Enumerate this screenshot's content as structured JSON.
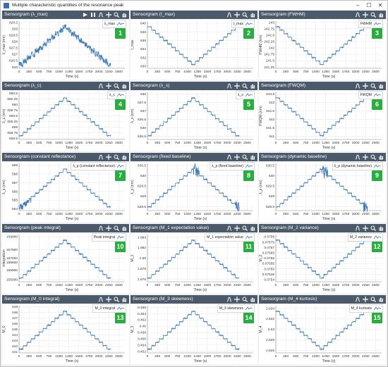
{
  "window": {
    "title": "Multiple characteristic quantities of the resonance peak",
    "controls": [
      "–",
      "☐",
      "✕"
    ]
  },
  "colors": {
    "line": "#3c78b5",
    "header": "#4a5a6b",
    "badge": "#27ae3f"
  },
  "panels": [
    {
      "number": "1",
      "title": "Sensorgram (λ_max)",
      "legend": "λ_max",
      "extra_tools": true,
      "ylabel": "λ_max (nm)",
      "xlabel": "Time (s)",
      "yticks": [
        "629.5",
        "629",
        "628.5",
        "628",
        "627.5",
        "627",
        "626.5",
        "626"
      ],
      "ylim": [
        625.9,
        629.6
      ],
      "pattern": "noisy_up_down"
    },
    {
      "number": "2",
      "title": "Sensorgram (I_max)",
      "legend": "I_max",
      "extra_tools": false,
      "ylabel": "I_max",
      "xlabel": "Time (s)",
      "yticks": [
        "640",
        "638",
        "636",
        "634",
        "632",
        "630"
      ],
      "ylim": [
        629.5,
        640.5
      ],
      "pattern": "dip"
    },
    {
      "number": "3",
      "title": "Sensorgram (FWHM)",
      "legend": "FWHM",
      "extra_tools": false,
      "ylabel": "FWHM (nm)",
      "xlabel": "Time (s)",
      "yticks": [
        "243",
        "242.75",
        "242.5",
        "242.25",
        "242",
        "241.75",
        "241.5",
        "241.25"
      ],
      "ylim": [
        241.2,
        243.05
      ],
      "pattern": "dip"
    },
    {
      "number": "4",
      "title": "Sensorgram (λ_c)",
      "legend": "λ_c",
      "extra_tools": false,
      "ylabel": "λ_c (nm)",
      "xlabel": "Time (s)",
      "yticks": [
        "660.5",
        "660.25",
        "660",
        "659.75",
        "659.5",
        "659.25",
        "659",
        "658.75",
        "658.5"
      ],
      "ylim": [
        658.45,
        660.55
      ],
      "pattern": "peak"
    },
    {
      "number": "5",
      "title": "Sensorgram (λ_s)",
      "legend": "λ_s",
      "extra_tools": false,
      "ylabel": "λ_s (nm)",
      "xlabel": "Time (s)",
      "yticks": [
        "638",
        "637.5",
        "637",
        "636.5",
        "636",
        "635.5"
      ],
      "ylim": [
        635.3,
        638.1
      ],
      "pattern": "peak"
    },
    {
      "number": "6",
      "title": "Sensorgram (FWQM)",
      "legend": "FWQM",
      "extra_tools": false,
      "ylabel": "FWQM (nm)",
      "xlabel": "Time (s)",
      "yticks": [
        "343.5",
        "343",
        "342.5",
        "342",
        "341.5",
        "341"
      ],
      "ylim": [
        340.8,
        343.6
      ],
      "pattern": "dip"
    },
    {
      "number": "7",
      "title": "Sensorgram (constant reflectance)",
      "legend": "λ_p (constant reflectance)",
      "extra_tools": false,
      "ylabel": "λ_p (nm)",
      "xlabel": "Time (s)",
      "yticks": [
        "569",
        "568",
        "567",
        "566",
        "565",
        "564"
      ],
      "ylim": [
        563.8,
        569.2
      ],
      "pattern": "peak_noisy_start"
    },
    {
      "number": "8",
      "title": "Sensorgram (fixed baseline)",
      "legend": "λ_p (fixed baseline)",
      "extra_tools": false,
      "ylabel": "λ_p (nm)",
      "xlabel": "Time (s)",
      "yticks": [
        "630.5",
        "630",
        "629.5",
        "629",
        "628.5"
      ],
      "ylim": [
        628.3,
        630.6
      ],
      "pattern": "peak_bursty"
    },
    {
      "number": "9",
      "title": "Sensorgram (dynamic baseline)",
      "legend": "λ_p (dynamic baseline)",
      "extra_tools": false,
      "ylabel": "λ_p (nm)",
      "xlabel": "Time (s)",
      "yticks": [
        "630.5",
        "630",
        "629.5",
        "629",
        "628.5"
      ],
      "ylim": [
        628.3,
        630.6
      ],
      "pattern": "peak_bursty"
    },
    {
      "number": "10",
      "title": "Sensorgram (peak integral)",
      "legend": "Peak integral",
      "extra_tools": false,
      "ylabel": "Integration",
      "xlabel": "Time (s)",
      "yticks": [
        "159000",
        "157800",
        "157000",
        "156600",
        "155900",
        "155000"
      ],
      "ylim": [
        154800,
        159200
      ],
      "pattern": "peak"
    },
    {
      "number": "11",
      "title": "Sensorgram (M_1 expectation value)",
      "legend": "M_1 expectation value",
      "extra_tools": false,
      "ylabel": "M_1",
      "xlabel": "Time (s)",
      "yticks": [
        "1.884",
        "1.882",
        "1.88",
        "1.878",
        "1.876"
      ],
      "ylim": [
        1.8755,
        1.8845
      ],
      "pattern": "peak"
    },
    {
      "number": "12",
      "title": "Sensorgram (M_2 variance)",
      "legend": "M_2 variance",
      "extra_tools": false,
      "ylabel": "M_2",
      "xlabel": "Time (s)",
      "yticks": [
        "0.0758",
        "0.07575",
        "0.0757",
        "0.07565",
        "0.0756",
        "0.07555",
        "0.0755",
        "0.07545",
        "0.0754"
      ],
      "ylim": [
        0.07538,
        0.07582
      ],
      "pattern": "dip"
    },
    {
      "number": "13",
      "title": "Sensorgram (M_0 integral)",
      "legend": "M_0 integral",
      "extra_tools": false,
      "ylabel": "M_0",
      "xlabel": "Time (s)",
      "yticks": [
        "449",
        "448",
        "447",
        "446",
        "445",
        "444",
        "443",
        "442",
        "441"
      ],
      "ylim": [
        440.8,
        449.2
      ],
      "pattern": "peak"
    },
    {
      "number": "14",
      "title": "Sensorgram (M_3 skewness)",
      "legend": "M_3 skewness",
      "extra_tools": false,
      "ylabel": "M_3",
      "xlabel": "Time (s)",
      "yticks": [
        "0.466",
        "0.464",
        "0.462",
        "0.46",
        "0.458",
        "0.456",
        "0.454",
        "0.452"
      ],
      "ylim": [
        0.4515,
        0.4665
      ],
      "pattern": "peak"
    },
    {
      "number": "15",
      "title": "Sensorgram (M_4 kurtosis)",
      "legend": "M_4 kurtosis",
      "extra_tools": false,
      "ylabel": "M_4",
      "xlabel": "Time (s)",
      "yticks": [
        "2.634",
        "2.632",
        "2.63",
        "2.628",
        "2.626"
      ],
      "ylim": [
        2.6255,
        2.6345
      ],
      "pattern": "dip"
    }
  ],
  "xticks": [
    "0",
    "250",
    "500",
    "750",
    "1000",
    "1250",
    "1500",
    "1750",
    "2000",
    "2250",
    "2500"
  ],
  "xlim": [
    0,
    2650
  ]
}
